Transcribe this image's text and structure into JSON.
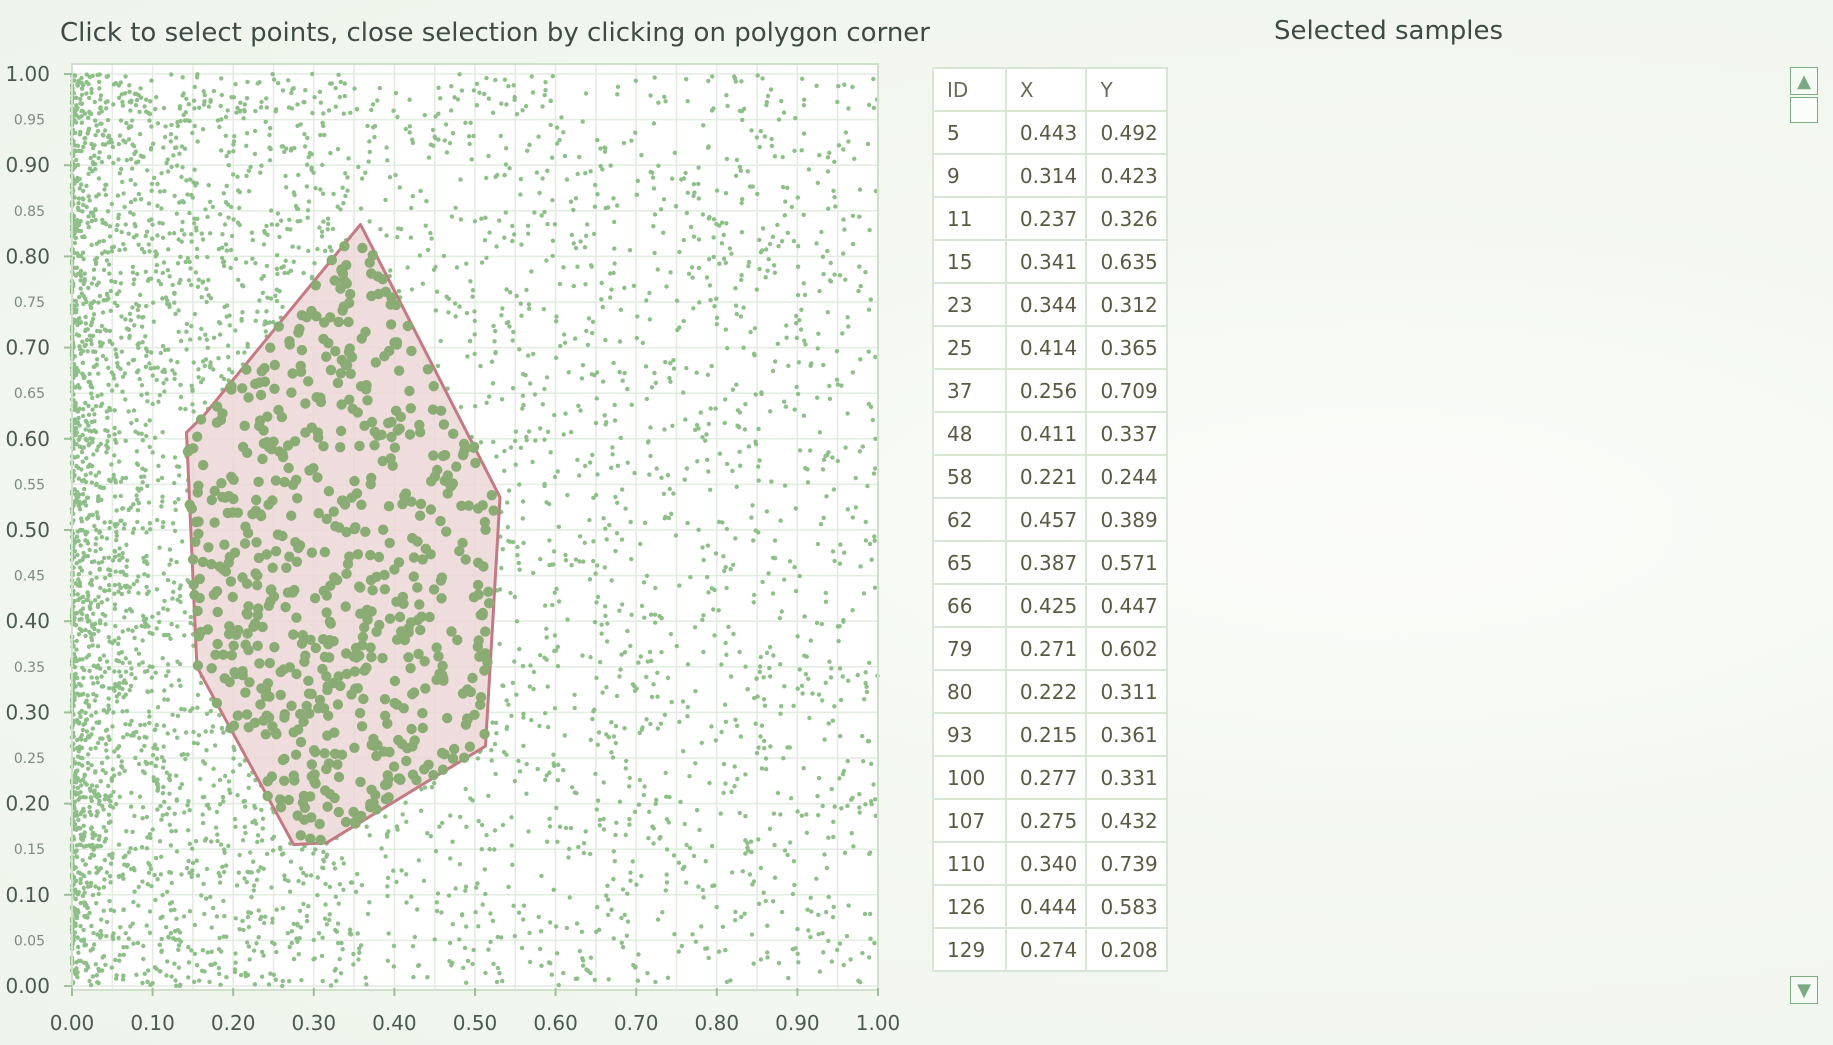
{
  "instruction": "Click to select points, close selection by clicking on polygon corner",
  "selected_title": "Selected samples",
  "colors": {
    "point": "#8ebf88",
    "selected_point": "#8aac74",
    "polygon_fill": "#ecd6d6",
    "polygon_stroke": "#c47a82",
    "grid": "#e2ece0"
  },
  "chart_data": {
    "type": "scatter",
    "xlim": [
      0,
      1
    ],
    "ylim": [
      0,
      1
    ],
    "grid": true,
    "x_ticks": [
      "0.00",
      "0.10",
      "0.20",
      "0.30",
      "0.40",
      "0.50",
      "0.60",
      "0.70",
      "0.80",
      "0.90",
      "1.00"
    ],
    "y_ticks_major": [
      "0.00",
      "0.10",
      "0.20",
      "0.30",
      "0.40",
      "0.50",
      "0.60",
      "0.70",
      "0.80",
      "0.90",
      "1.00"
    ],
    "y_ticks_minor": [
      "0.05",
      "0.15",
      "0.25",
      "0.35",
      "0.45",
      "0.55",
      "0.65",
      "0.75",
      "0.85",
      "0.95"
    ],
    "selection_polygon": [
      [
        0.358,
        0.835
      ],
      [
        0.531,
        0.536
      ],
      [
        0.513,
        0.263
      ],
      [
        0.316,
        0.157
      ],
      [
        0.275,
        0.155
      ],
      [
        0.155,
        0.35
      ],
      [
        0.142,
        0.607
      ],
      [
        0.163,
        0.625
      ]
    ]
  },
  "table": {
    "headers": [
      "ID",
      "X",
      "Y"
    ],
    "rows": [
      [
        "5",
        "0.443",
        "0.492"
      ],
      [
        "9",
        "0.314",
        "0.423"
      ],
      [
        "11",
        "0.237",
        "0.326"
      ],
      [
        "15",
        "0.341",
        "0.635"
      ],
      [
        "23",
        "0.344",
        "0.312"
      ],
      [
        "25",
        "0.414",
        "0.365"
      ],
      [
        "37",
        "0.256",
        "0.709"
      ],
      [
        "48",
        "0.411",
        "0.337"
      ],
      [
        "58",
        "0.221",
        "0.244"
      ],
      [
        "62",
        "0.457",
        "0.389"
      ],
      [
        "65",
        "0.387",
        "0.571"
      ],
      [
        "66",
        "0.425",
        "0.447"
      ],
      [
        "79",
        "0.271",
        "0.602"
      ],
      [
        "80",
        "0.222",
        "0.311"
      ],
      [
        "93",
        "0.215",
        "0.361"
      ],
      [
        "100",
        "0.277",
        "0.331"
      ],
      [
        "107",
        "0.275",
        "0.432"
      ],
      [
        "110",
        "0.340",
        "0.739"
      ],
      [
        "126",
        "0.444",
        "0.583"
      ],
      [
        "129",
        "0.274",
        "0.208"
      ]
    ]
  },
  "scrollbar": {
    "up_icon": "triangle-up-icon",
    "down_icon": "triangle-down-icon",
    "up_glyph": "▲",
    "down_glyph": "▼"
  }
}
